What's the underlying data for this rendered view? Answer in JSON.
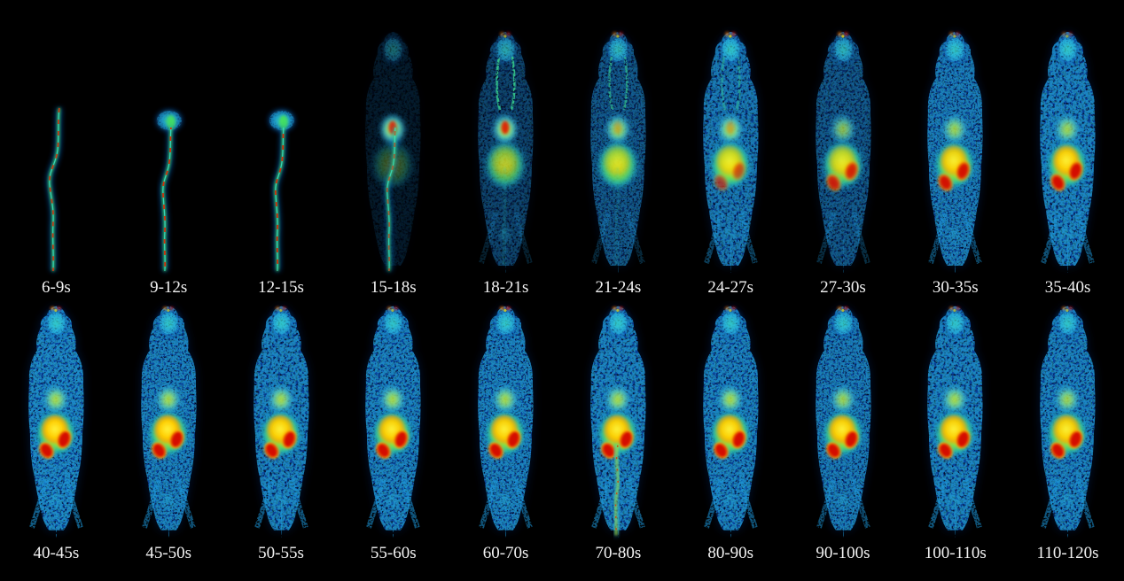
{
  "figure": {
    "background": "#000000",
    "label_style": {
      "color": "#f2f2f2"
    },
    "colormap": {
      "name": "jet-style",
      "background": "#000000",
      "low_blue": "#0a2f7e",
      "cyan": "#2fc8ea",
      "green": "#3ce05c",
      "yellow": "#ffe41e",
      "orange": "#ff7a00",
      "red": "#d41000"
    },
    "rows": [
      {
        "frames": [
          {
            "label": "6-9s",
            "vessel": 1,
            "vesselRed": 0.85,
            "vesselSpan": "full"
          },
          {
            "label": "9-12s",
            "vessel": 1,
            "vesselRed": 0.95,
            "vesselSpan": "mid",
            "topBlob": 0.85
          },
          {
            "label": "12-15s",
            "vessel": 1,
            "vesselRed": 0.95,
            "vesselSpan": "mid",
            "topBlob": 0.9
          },
          {
            "label": "15-18s",
            "vessel": 0.9,
            "vesselRed": 0.6,
            "vesselSpan": "mid",
            "body": 0.14,
            "head": 0.35,
            "heart": 1,
            "heartRed": 0.85,
            "liverGreen": 0.3
          },
          {
            "label": "18-21s",
            "body": 0.4,
            "head": 0.65,
            "neck": 0.85,
            "nose": 0.7,
            "heart": 1,
            "heartRed": 0.9,
            "liverGreen": 0.75,
            "liverYellow": 0.2,
            "legs": 0.25,
            "lowVessel": 0.6,
            "bladder": 0.25
          },
          {
            "label": "21-24s",
            "body": 0.55,
            "head": 0.75,
            "neck": 0.6,
            "nose": 0.75,
            "heart": 0.9,
            "heartRed": 0.2,
            "liverGreen": 0.9,
            "liverYellow": 0.3,
            "legs": 0.3,
            "lowVessel": 0.45
          },
          {
            "label": "24-27s",
            "body": 0.8,
            "head": 0.85,
            "neck": 0.4,
            "nose": 0.9,
            "heart": 0.95,
            "heartRed": 0.25,
            "liverGreen": 1,
            "liverYellow": 0.55,
            "kidneys": 0.4,
            "kidneyRed": 0.45,
            "legs": 0.5,
            "bladder": 0.25
          },
          {
            "label": "27-30s",
            "body": 0.55,
            "head": 0.7,
            "nose": 0.9,
            "heart": 0.7,
            "liverGreen": 0.95,
            "liverYellow": 0.5,
            "kidneys": 0.7,
            "kidneyRed": 0.7,
            "legs": 0.35
          },
          {
            "label": "30-35s",
            "body": 0.85,
            "head": 0.85,
            "nose": 0.7,
            "heart": 0.8,
            "liverGreen": 1,
            "liverYellow": 0.85,
            "kidneys": 0.85,
            "kidneyRed": 0.9,
            "legs": 0.55,
            "bladder": 0.25
          },
          {
            "label": "35-40s",
            "body": 0.9,
            "head": 0.85,
            "nose": 0.6,
            "heart": 0.8,
            "liverGreen": 1,
            "liverYellow": 0.95,
            "kidneys": 0.9,
            "kidneyRed": 1,
            "legs": 0.6,
            "bladder": 0.25
          }
        ]
      },
      {
        "frames": [
          {
            "label": "40-45s",
            "body": 0.95,
            "head": 0.9,
            "nose": 0.8,
            "heart": 0.85,
            "liverGreen": 1,
            "liverYellow": 1,
            "kidneys": 1,
            "kidneyRed": 1,
            "legs": 0.7,
            "bladder": 0.3
          },
          {
            "label": "45-50s",
            "body": 0.9,
            "head": 0.85,
            "nose": 0.7,
            "heart": 0.85,
            "liverGreen": 1,
            "liverYellow": 1,
            "kidneys": 1,
            "kidneyRed": 1,
            "legs": 0.65,
            "bladder": 0.3
          },
          {
            "label": "50-55s",
            "body": 0.9,
            "head": 0.85,
            "nose": 0.7,
            "heart": 0.85,
            "liverGreen": 1,
            "liverYellow": 0.95,
            "kidneys": 1,
            "kidneyRed": 1,
            "legs": 0.65,
            "bladder": 0.3
          },
          {
            "label": "55-60s",
            "body": 0.9,
            "head": 0.85,
            "nose": 0.7,
            "heart": 0.85,
            "liverGreen": 1,
            "liverYellow": 0.95,
            "kidneys": 1,
            "kidneyRed": 1,
            "legs": 0.65,
            "bladder": 0.3
          },
          {
            "label": "60-70s",
            "body": 0.9,
            "head": 0.9,
            "nose": 0.9,
            "heart": 0.85,
            "liverGreen": 1,
            "liverYellow": 0.95,
            "kidneys": 1,
            "kidneyRed": 1,
            "legs": 0.65,
            "bladder": 0.3
          },
          {
            "label": "70-80s",
            "body": 0.9,
            "head": 0.9,
            "nose": 0.8,
            "heart": 0.85,
            "liverGreen": 1,
            "liverYellow": 0.95,
            "kidneys": 1,
            "kidneyRed": 1,
            "legs": 0.65,
            "tailLine": 1
          },
          {
            "label": "80-90s",
            "body": 0.9,
            "head": 0.85,
            "nose": 0.7,
            "heart": 0.85,
            "liverGreen": 1,
            "liverYellow": 0.95,
            "kidneys": 1,
            "kidneyRed": 1,
            "legs": 0.65,
            "bladder": 0.3
          },
          {
            "label": "90-100s",
            "body": 0.85,
            "head": 0.85,
            "nose": 0.8,
            "heart": 0.8,
            "liverGreen": 1,
            "liverYellow": 0.95,
            "kidneys": 1,
            "kidneyRed": 1,
            "legs": 0.6,
            "bladder": 0.3
          },
          {
            "label": "100-110s",
            "body": 0.9,
            "head": 0.85,
            "nose": 0.7,
            "heart": 0.85,
            "liverGreen": 1,
            "liverYellow": 0.95,
            "kidneys": 1,
            "kidneyRed": 1,
            "legs": 0.65,
            "bladder": 0.3
          },
          {
            "label": "110-120s",
            "body": 0.9,
            "head": 0.85,
            "nose": 0.7,
            "heart": 0.8,
            "liverGreen": 1,
            "liverYellow": 0.9,
            "kidneys": 1,
            "kidneyRed": 1,
            "legs": 0.65,
            "bladder": 0.3
          }
        ]
      }
    ]
  }
}
